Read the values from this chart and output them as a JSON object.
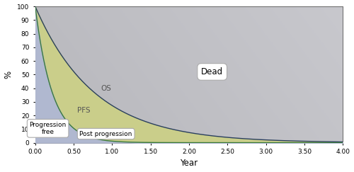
{
  "title": "",
  "xlabel": "Year",
  "ylabel": "%",
  "xlim": [
    0,
    4.0
  ],
  "ylim": [
    0,
    100
  ],
  "xticks": [
    0.0,
    0.5,
    1.0,
    1.5,
    2.0,
    2.5,
    3.0,
    3.5,
    4.0
  ],
  "yticks": [
    0,
    10,
    20,
    30,
    40,
    50,
    60,
    70,
    80,
    90,
    100
  ],
  "os_lambda": 1.3,
  "pfs_lambda": 4.5,
  "color_progression_free": "#b0b8d0",
  "color_post_progression": "#cace8a",
  "color_dead_base": "#b8bcc4",
  "color_os_line": "#2a3f60",
  "color_pfs_line": "#3a7a3a",
  "os_label": "OS",
  "pfs_label": "PFS",
  "label_progression_free": "Progression\nfree",
  "label_post_progression": "Post progression",
  "label_dead": "Dead",
  "figsize": [
    5.0,
    2.43
  ],
  "dpi": 100,
  "fig_bg_color": "#ffffff"
}
